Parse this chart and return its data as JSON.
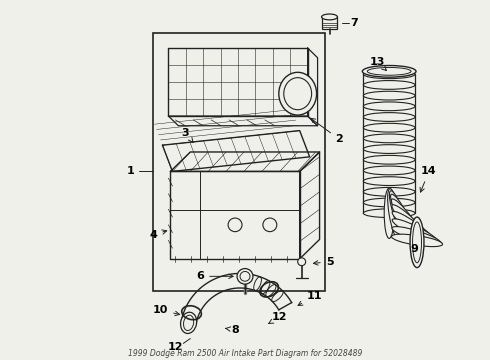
{
  "title": "1999 Dodge Ram 2500 Air Intake Part Diagram for 52028489",
  "bg_color": "#f0f0eb",
  "line_color": "#222222",
  "text_color": "#000000",
  "figsize": [
    4.9,
    3.6
  ],
  "dpi": 100
}
